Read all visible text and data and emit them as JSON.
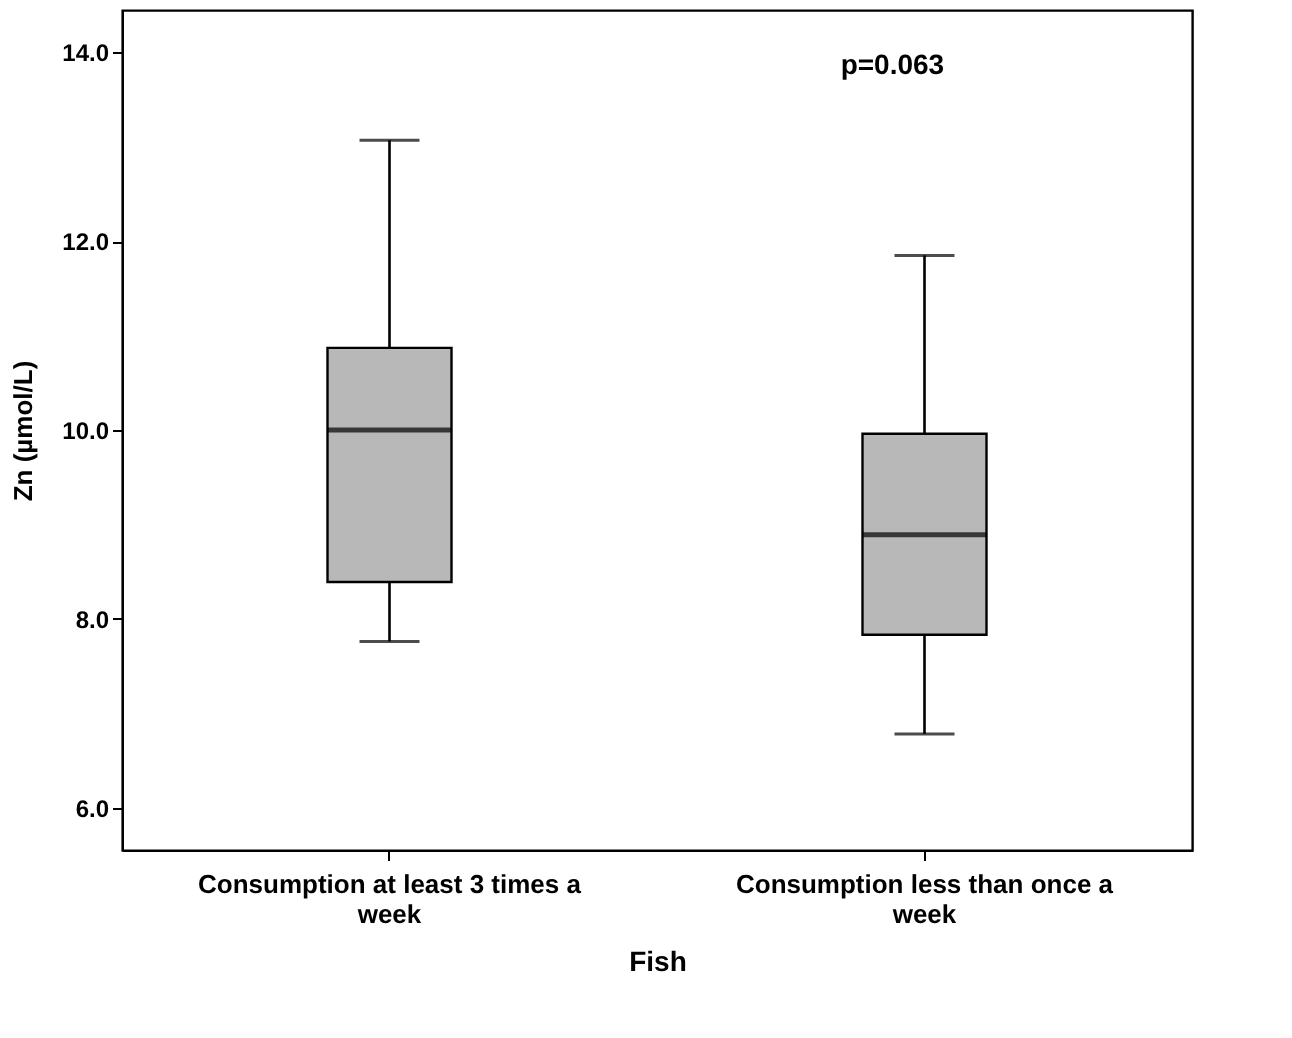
{
  "chart_data": {
    "type": "box",
    "xlabel": "Fish",
    "ylabel": "Zn (µmol/L)",
    "categories": [
      "Consumption at least 3 times a week",
      "Consumption less than once a week"
    ],
    "boxes": [
      {
        "low": 7.76,
        "q1": 8.39,
        "median": 10.0,
        "q3": 10.87,
        "high": 13.07
      },
      {
        "low": 6.78,
        "q1": 7.83,
        "median": 8.89,
        "q3": 9.96,
        "high": 11.85
      }
    ],
    "color": "#b8b8b8",
    "ylim": [
      5.55,
      14.45
    ],
    "yticks": [
      {
        "value": 6,
        "label": "6.0"
      },
      {
        "value": 8,
        "label": "8.0"
      },
      {
        "value": 10,
        "label": "10.0"
      },
      {
        "value": 12,
        "label": "12.0"
      },
      {
        "value": 14,
        "label": "14.0"
      }
    ],
    "annotations": [
      "p=0.063"
    ],
    "grid": false
  }
}
